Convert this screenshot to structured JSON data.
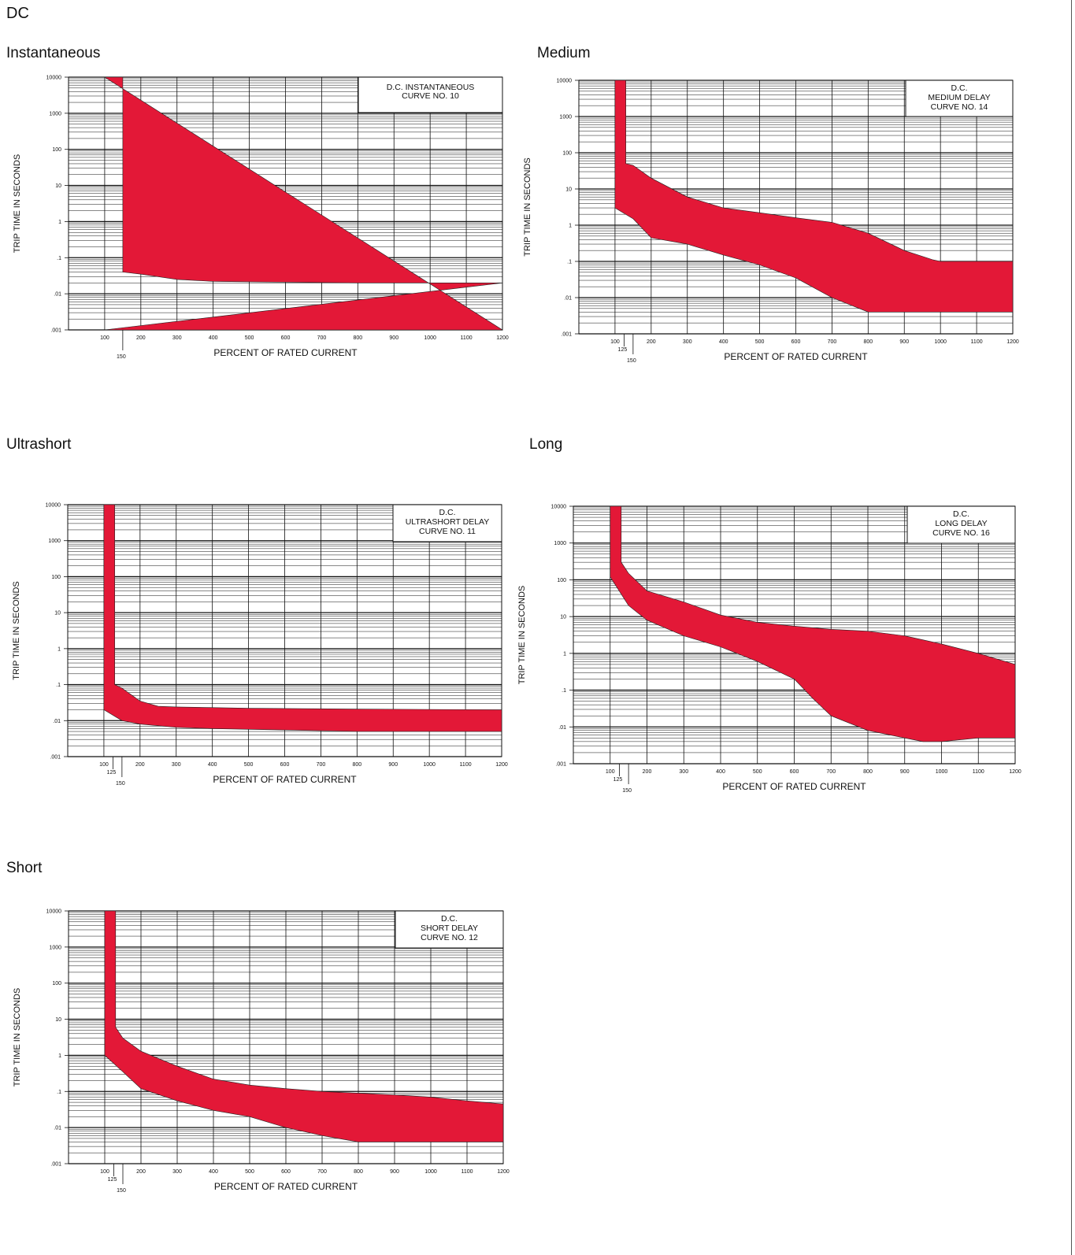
{
  "page_title": "DC",
  "colors": {
    "band": "#e31837",
    "grid": "#111111"
  },
  "chart_data": [
    {
      "id": "instantaneous",
      "section_title": "Instantaneous",
      "type": "area",
      "title_lines": [
        "D.C.  INSTANTANEOUS",
        "CURVE NO. 10"
      ],
      "xlabel": "PERCENT OF RATED CURRENT",
      "ylabel": "TRIP TIME IN SECONDS",
      "x_scale": "linear",
      "xlim": [
        0,
        1200
      ],
      "y_scale": "log",
      "ylim": [
        0.001,
        10000
      ],
      "grid": true,
      "x_ticks": [
        "100",
        "200",
        "300",
        "400",
        "500",
        "600",
        "700",
        "800",
        "900",
        "1000",
        "1100",
        "1200"
      ],
      "y_ticks": [
        ".001",
        ".01",
        ".1",
        "1",
        "10",
        "100",
        "1000",
        "10000"
      ],
      "marker_ticks": [
        "150"
      ],
      "band": {
        "upper": [
          [
            100,
            10000
          ],
          [
            150,
            10000
          ],
          [
            150,
            0.04
          ],
          [
            200,
            0.035
          ],
          [
            300,
            0.025
          ],
          [
            400,
            0.022
          ],
          [
            600,
            0.021
          ],
          [
            800,
            0.02
          ],
          [
            1200,
            0.02
          ]
        ],
        "lower": [
          [
            100,
            0.001
          ],
          [
            1200,
            0.001
          ]
        ]
      }
    },
    {
      "id": "medium",
      "section_title": "Medium",
      "type": "area",
      "title_lines": [
        "D.C.",
        "MEDIUM DELAY",
        "CURVE NO. 14"
      ],
      "xlabel": "PERCENT OF RATED CURRENT",
      "ylabel": "TRIP TIME IN SECONDS",
      "x_scale": "linear",
      "xlim": [
        0,
        1200
      ],
      "y_scale": "log",
      "ylim": [
        0.001,
        10000
      ],
      "grid": true,
      "x_ticks": [
        "100",
        "200",
        "300",
        "400",
        "500",
        "600",
        "700",
        "800",
        "900",
        "1000",
        "1100",
        "1200"
      ],
      "y_ticks": [
        ".001",
        ".01",
        ".1",
        "1",
        "10",
        "100",
        "1000",
        "10000"
      ],
      "marker_ticks": [
        "125",
        "150"
      ],
      "band": {
        "upper": [
          [
            100,
            10000
          ],
          [
            130,
            10000
          ],
          [
            130,
            50
          ],
          [
            150,
            45
          ],
          [
            200,
            20
          ],
          [
            300,
            6
          ],
          [
            400,
            3
          ],
          [
            500,
            2.2
          ],
          [
            600,
            1.6
          ],
          [
            700,
            1.2
          ],
          [
            800,
            0.6
          ],
          [
            900,
            0.2
          ],
          [
            980,
            0.11
          ],
          [
            1000,
            0.1
          ],
          [
            1200,
            0.1
          ]
        ],
        "lower": [
          [
            1200,
            0.004
          ],
          [
            900,
            0.004
          ],
          [
            800,
            0.004
          ],
          [
            700,
            0.01
          ],
          [
            600,
            0.035
          ],
          [
            500,
            0.08
          ],
          [
            400,
            0.15
          ],
          [
            300,
            0.3
          ],
          [
            200,
            0.45
          ],
          [
            150,
            1.5
          ],
          [
            100,
            3
          ]
        ]
      }
    },
    {
      "id": "ultrashort",
      "section_title": "Ultrashort",
      "type": "area",
      "title_lines": [
        "D.C.",
        "ULTRASHORT DELAY",
        "CURVE NO. 11"
      ],
      "xlabel": "PERCENT OF RATED CURRENT",
      "ylabel": "TRIP TIME IN SECONDS",
      "x_scale": "linear",
      "xlim": [
        0,
        1200
      ],
      "y_scale": "log",
      "ylim": [
        0.001,
        10000
      ],
      "grid": true,
      "x_ticks": [
        "100",
        "200",
        "300",
        "400",
        "500",
        "600",
        "700",
        "800",
        "900",
        "1000",
        "1100",
        "1200"
      ],
      "y_ticks": [
        ".001",
        ".01",
        ".1",
        "1",
        "10",
        "100",
        "1000",
        "10000"
      ],
      "marker_ticks": [
        "125",
        "150"
      ],
      "band": {
        "upper": [
          [
            100,
            10000
          ],
          [
            130,
            10000
          ],
          [
            130,
            0.1
          ],
          [
            150,
            0.08
          ],
          [
            200,
            0.035
          ],
          [
            250,
            0.025
          ],
          [
            300,
            0.024
          ],
          [
            500,
            0.022
          ],
          [
            800,
            0.021
          ],
          [
            1200,
            0.02
          ]
        ],
        "lower": [
          [
            1200,
            0.005
          ],
          [
            800,
            0.005
          ],
          [
            600,
            0.0055
          ],
          [
            400,
            0.006
          ],
          [
            300,
            0.0065
          ],
          [
            200,
            0.008
          ],
          [
            150,
            0.01
          ],
          [
            100,
            0.02
          ]
        ]
      }
    },
    {
      "id": "long",
      "section_title": "Long",
      "type": "area",
      "title_lines": [
        "D.C.",
        "LONG DELAY",
        "CURVE NO. 16"
      ],
      "xlabel": "PERCENT OF RATED CURRENT",
      "ylabel": "TRIP TIME IN SECONDS",
      "x_scale": "linear",
      "xlim": [
        0,
        1200
      ],
      "y_scale": "log",
      "ylim": [
        0.001,
        10000
      ],
      "grid": true,
      "x_ticks": [
        "100",
        "200",
        "300",
        "400",
        "500",
        "600",
        "700",
        "800",
        "900",
        "1000",
        "1100",
        "1200"
      ],
      "y_ticks": [
        ".001",
        ".01",
        ".1",
        "1",
        "10",
        "100",
        "1000",
        "10000"
      ],
      "marker_ticks": [
        "125",
        "150"
      ],
      "band": {
        "upper": [
          [
            100,
            10000
          ],
          [
            130,
            10000
          ],
          [
            130,
            300
          ],
          [
            150,
            150
          ],
          [
            200,
            50
          ],
          [
            300,
            25
          ],
          [
            400,
            11
          ],
          [
            500,
            7
          ],
          [
            600,
            5.5
          ],
          [
            700,
            4.5
          ],
          [
            800,
            4
          ],
          [
            900,
            3
          ],
          [
            1000,
            1.8
          ],
          [
            1100,
            1
          ],
          [
            1200,
            0.5
          ]
        ],
        "lower": [
          [
            1200,
            0.005
          ],
          [
            1100,
            0.005
          ],
          [
            1000,
            0.004
          ],
          [
            950,
            0.004
          ],
          [
            900,
            0.005
          ],
          [
            800,
            0.008
          ],
          [
            700,
            0.02
          ],
          [
            650,
            0.06
          ],
          [
            600,
            0.2
          ],
          [
            500,
            0.6
          ],
          [
            400,
            1.5
          ],
          [
            300,
            3
          ],
          [
            200,
            8
          ],
          [
            150,
            20
          ],
          [
            100,
            120
          ]
        ]
      }
    },
    {
      "id": "short",
      "section_title": "Short",
      "type": "area",
      "title_lines": [
        "D.C.",
        "SHORT DELAY",
        "CURVE NO. 12"
      ],
      "xlabel": "PERCENT OF RATED CURRENT",
      "ylabel": "TRIP TIME IN SECONDS",
      "x_scale": "linear",
      "xlim": [
        0,
        1200
      ],
      "y_scale": "log",
      "ylim": [
        0.001,
        10000
      ],
      "grid": true,
      "x_ticks": [
        "100",
        "200",
        "300",
        "400",
        "500",
        "600",
        "700",
        "800",
        "900",
        "1000",
        "1100",
        "1200"
      ],
      "y_ticks": [
        ".001",
        ".01",
        ".1",
        "1",
        "10",
        "100",
        "1000",
        "10000"
      ],
      "marker_ticks": [
        "125",
        "150"
      ],
      "band": {
        "upper": [
          [
            100,
            10000
          ],
          [
            130,
            10000
          ],
          [
            130,
            6
          ],
          [
            150,
            3
          ],
          [
            200,
            1.3
          ],
          [
            300,
            0.5
          ],
          [
            400,
            0.22
          ],
          [
            500,
            0.15
          ],
          [
            600,
            0.12
          ],
          [
            700,
            0.1
          ],
          [
            800,
            0.09
          ],
          [
            900,
            0.08
          ],
          [
            1000,
            0.07
          ],
          [
            1100,
            0.055
          ],
          [
            1200,
            0.045
          ]
        ],
        "lower": [
          [
            1200,
            0.004
          ],
          [
            800,
            0.004
          ],
          [
            700,
            0.006
          ],
          [
            600,
            0.01
          ],
          [
            500,
            0.02
          ],
          [
            400,
            0.03
          ],
          [
            300,
            0.055
          ],
          [
            200,
            0.12
          ],
          [
            150,
            0.35
          ],
          [
            100,
            1
          ]
        ]
      }
    }
  ]
}
